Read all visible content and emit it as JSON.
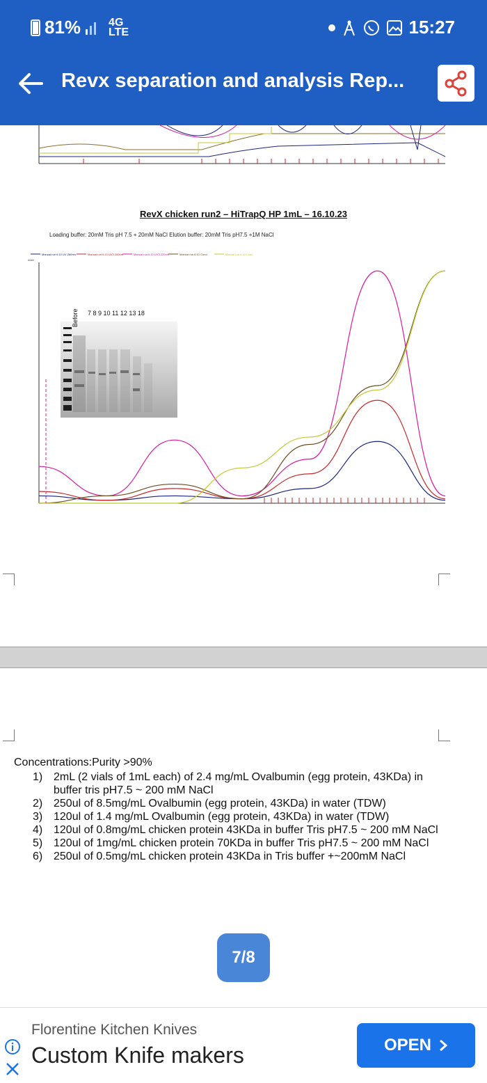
{
  "status_bar": {
    "battery": "81%",
    "network": "4G",
    "network_sub": "LTE",
    "time": "15:27"
  },
  "app_bar": {
    "title": "Revx separation and analysis Rep..."
  },
  "page": {
    "chart_title": "RevX chicken run2 – HiTrapQ HP 1mL – 16.10.23",
    "buffers": "Loading buffer: 20mM Tris pH 7.5 + 20mM NaCl    Elution buffer: 20mM Tris pH7.5 +1M NaCl",
    "gel_lane_labels": "7   8   9   10   11   12  13  18",
    "gel_before": "Before",
    "chart_data": {
      "type": "line",
      "x": [
        0,
        10,
        20,
        30,
        40,
        50,
        60
      ],
      "series": [
        {
          "name": "Manual run 6:10  UV 280nm",
          "color": "#1a237e",
          "values": [
            5,
            2,
            5,
            3,
            10,
            42,
            2
          ]
        },
        {
          "name": "Manual run 6:10  UV2 260nm",
          "color": "#c62828",
          "values": [
            8,
            2,
            10,
            3,
            20,
            70,
            3
          ]
        },
        {
          "name": "Manual run 6:10  UV3 220nm",
          "color": "#d81b9c",
          "values": [
            25,
            5,
            43,
            5,
            30,
            158,
            5
          ]
        },
        {
          "name": "Manual run 6:10  Cond",
          "color": "#6d4c1f",
          "values": [
            0,
            5,
            13,
            3,
            40,
            80,
            158
          ]
        },
        {
          "name": "Manual run 6:10  Conc",
          "color": "#c0ca33",
          "values": [
            0,
            0,
            0,
            24,
            45,
            77,
            158
          ]
        }
      ],
      "ylabel": "mAU"
    },
    "concentrations_label": "Concentrations:",
    "purity": "Purity >90%",
    "items": [
      {
        "num": "1)",
        "text": "2mL (2 vials of 1mL each) of 2.4 mg/mL Ovalbumin (egg protein, 43KDa) in buffer tris pH7.5 ~ 200 mM NaCl"
      },
      {
        "num": "2)",
        "text": "250ul of 8.5mg/mL Ovalbumin (egg protein, 43KDa) in water (TDW)"
      },
      {
        "num": "3)",
        "text": "120ul of 1.4 mg/mL Ovalbumin (egg protein, 43KDa) in water (TDW)"
      },
      {
        "num": "4)",
        "text": "120ul of 0.8mg/mL chicken protein 43KDa in buffer Tris pH7.5 ~ 200 mM NaCl"
      },
      {
        "num": "5)",
        "text": "120ul of 1mg/mL chicken protein 70KDa in buffer Tris pH7.5 ~ 200 mM NaCl"
      },
      {
        "num": "6)",
        "text": "250ul of 0.5mg/mL chicken protein 43KDa in Tris buffer +~200mM NaCl"
      }
    ],
    "page_indicator": "7/8"
  },
  "ad": {
    "subtitle": "Florentine Kitchen Knives",
    "title": "Custom Knife makers",
    "button": "OPEN"
  }
}
